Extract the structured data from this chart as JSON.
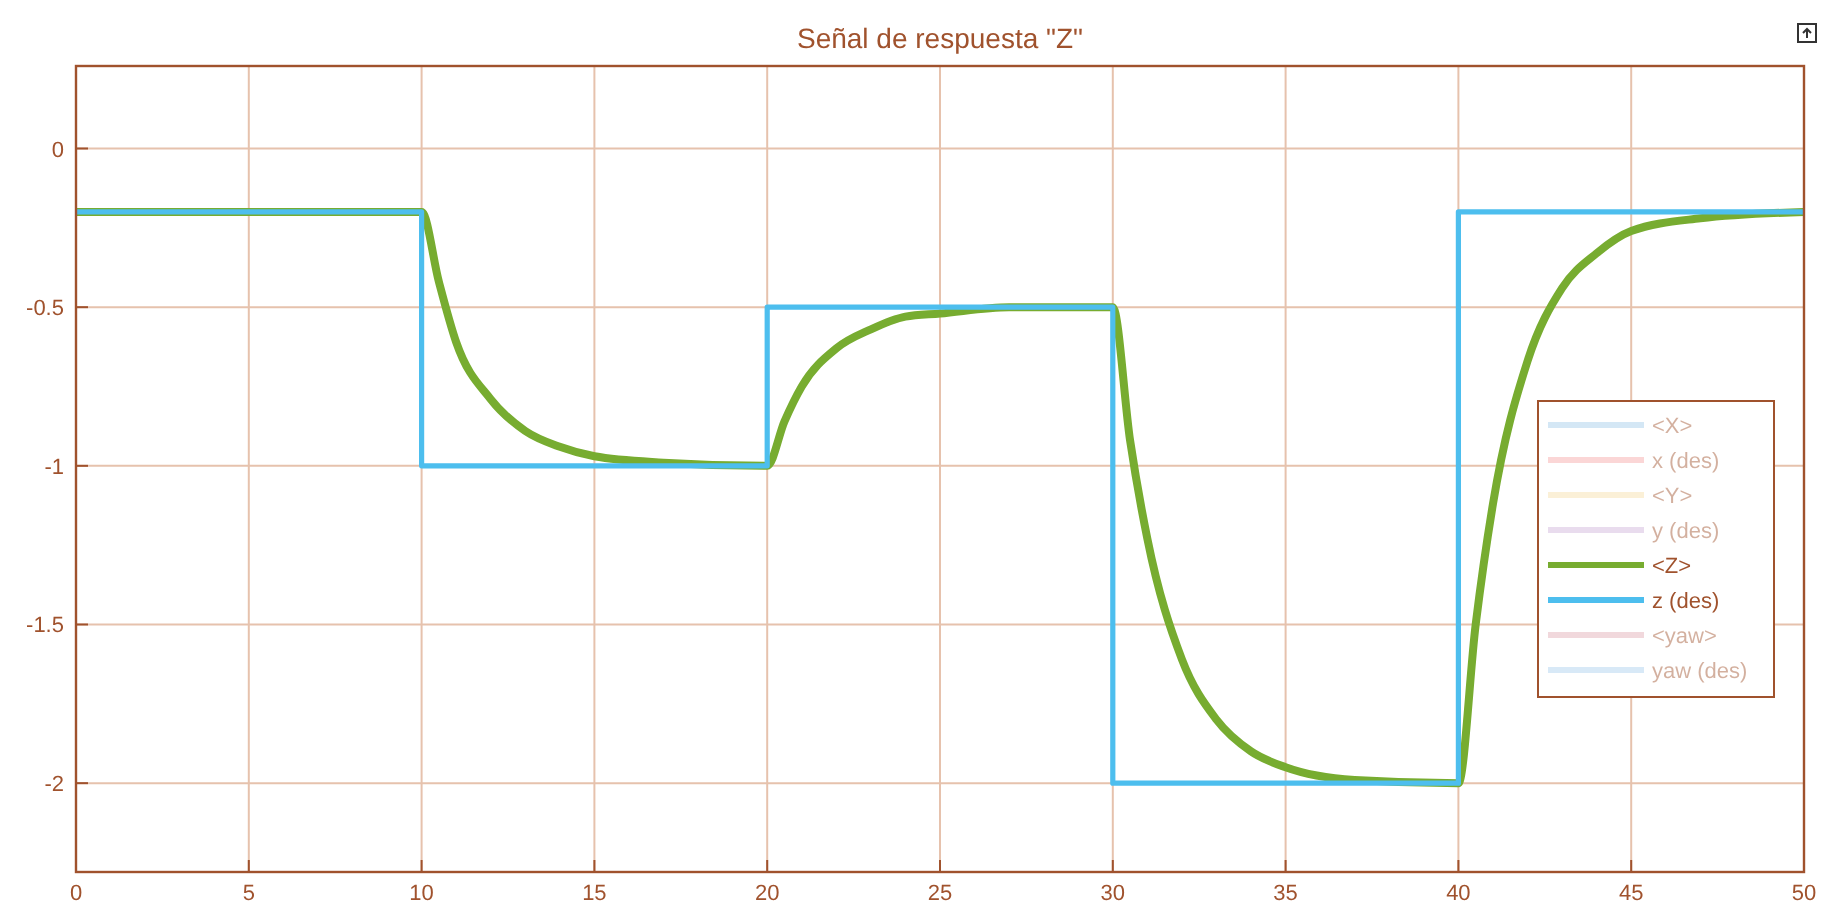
{
  "chart_data": {
    "type": "line",
    "title": "Señal de respuesta \"Z\"",
    "xlim": [
      0,
      50
    ],
    "xticks": [
      0,
      5,
      10,
      15,
      20,
      25,
      30,
      35,
      40,
      45,
      50
    ],
    "ylim": [
      -2.28,
      0.26
    ],
    "yticks": [
      -2,
      -1.5,
      -1,
      -0.5,
      0
    ],
    "grid": true,
    "legend": "right",
    "line_style": "solid",
    "marker": "none",
    "series": [
      {
        "name": "<X>",
        "color": "#a2cbe9"
      },
      {
        "name": "x (des)",
        "color": "#f7a6a6"
      },
      {
        "name": "<Y>",
        "color": "#f7e0a8"
      },
      {
        "name": "y (des)",
        "color": "#cfb3da"
      },
      {
        "name": "<Z>",
        "color": "#77ac30",
        "x": [
          0,
          10,
          10.5,
          11,
          12,
          13,
          14,
          15,
          17,
          20,
          20.5,
          21,
          22,
          23,
          24,
          25,
          27,
          30,
          30.5,
          31,
          32,
          33,
          34,
          35,
          37,
          40,
          40.5,
          41,
          42,
          43,
          44,
          45,
          47,
          50
        ],
        "values": [
          -0.2,
          -0.2,
          -0.42,
          -0.61,
          -0.79,
          -0.89,
          -0.94,
          -0.97,
          -0.99,
          -1,
          -0.86,
          -0.75,
          -0.63,
          -0.57,
          -0.53,
          -0.52,
          -0.5,
          -0.5,
          -0.92,
          -1.23,
          -1.61,
          -1.8,
          -1.9,
          -1.95,
          -1.99,
          -2,
          -1.5,
          -1.12,
          -0.67,
          -0.44,
          -0.33,
          -0.26,
          -0.22,
          -0.2
        ]
      },
      {
        "name": "z (des)",
        "type": "step",
        "color": "#4dbeee",
        "x": [
          0,
          10,
          20,
          30,
          40,
          50
        ],
        "values": [
          -0.2,
          -1,
          -0.5,
          -2,
          -0.2,
          -0.2
        ]
      },
      {
        "name": "<yaw>",
        "color": "#e1aab3"
      },
      {
        "name": "yaw (des)",
        "color": "#a9d0ee"
      }
    ]
  }
}
